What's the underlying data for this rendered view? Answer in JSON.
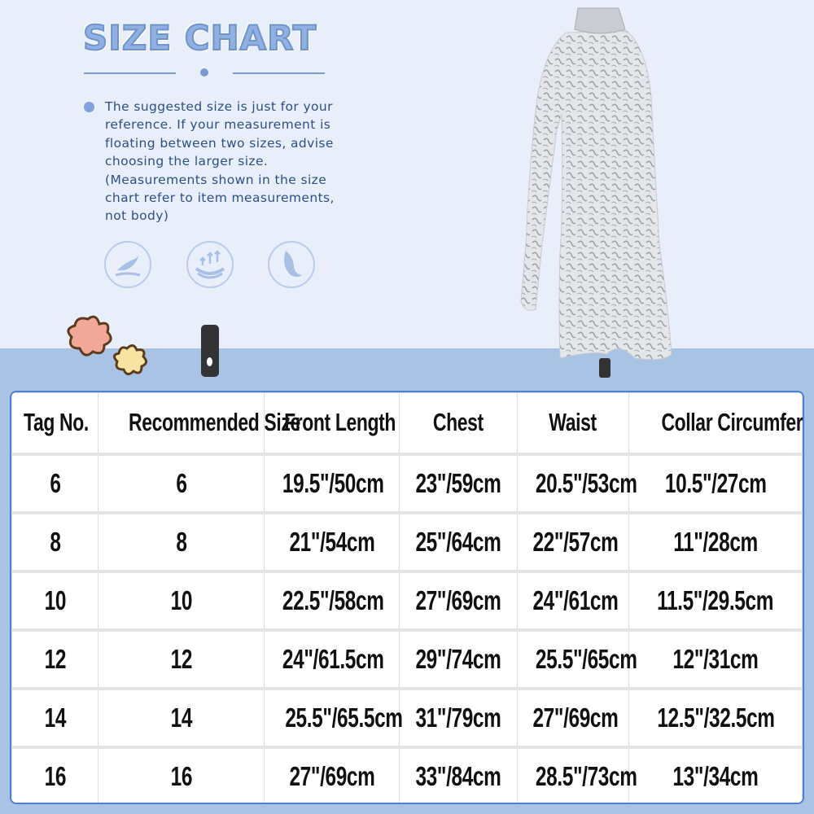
{
  "title": "SIZE CHART",
  "note": "The suggested size is just for your\nreference. If your measurement is\nfloating between two sizes, advise\n choosing the larger size.\n(Measurements shown in the size\nchart refer to item measurements,\nnot body)",
  "features": [
    "soft-hand-icon",
    "breathable-icon",
    "lightweight-feather-icon"
  ],
  "colors": {
    "background": "#e8effb",
    "band": "#a9c3e4",
    "accent": "#7a9bd0",
    "table_border": "#4d7fd0"
  },
  "table": {
    "headers": [
      "Tag No.",
      "Recommended Size",
      "Front Length",
      "Chest",
      "Waist",
      "Collar Circumference"
    ],
    "rows": [
      [
        "6",
        "6",
        "19.5\"/50cm",
        "23\"/59cm",
        "20.5\"/53cm",
        "10.5\"/27cm"
      ],
      [
        "8",
        "8",
        "21\"/54cm",
        "25\"/64cm",
        "22\"/57cm",
        "11\"/28cm"
      ],
      [
        "10",
        "10",
        "22.5\"/58cm",
        "27\"/69cm",
        "24\"/61cm",
        "11.5\"/29.5cm"
      ],
      [
        "12",
        "12",
        "24\"/61.5cm",
        "29\"/74cm",
        "25.5\"/65cm",
        "12\"/31cm"
      ],
      [
        "14",
        "14",
        "25.5\"/65.5cm",
        "31\"/79cm",
        "27\"/69cm",
        "12.5\"/32.5cm"
      ],
      [
        "16",
        "16",
        "27\"/69cm",
        "33\"/84cm",
        "28.5\"/73cm",
        "13\"/34cm"
      ]
    ]
  }
}
